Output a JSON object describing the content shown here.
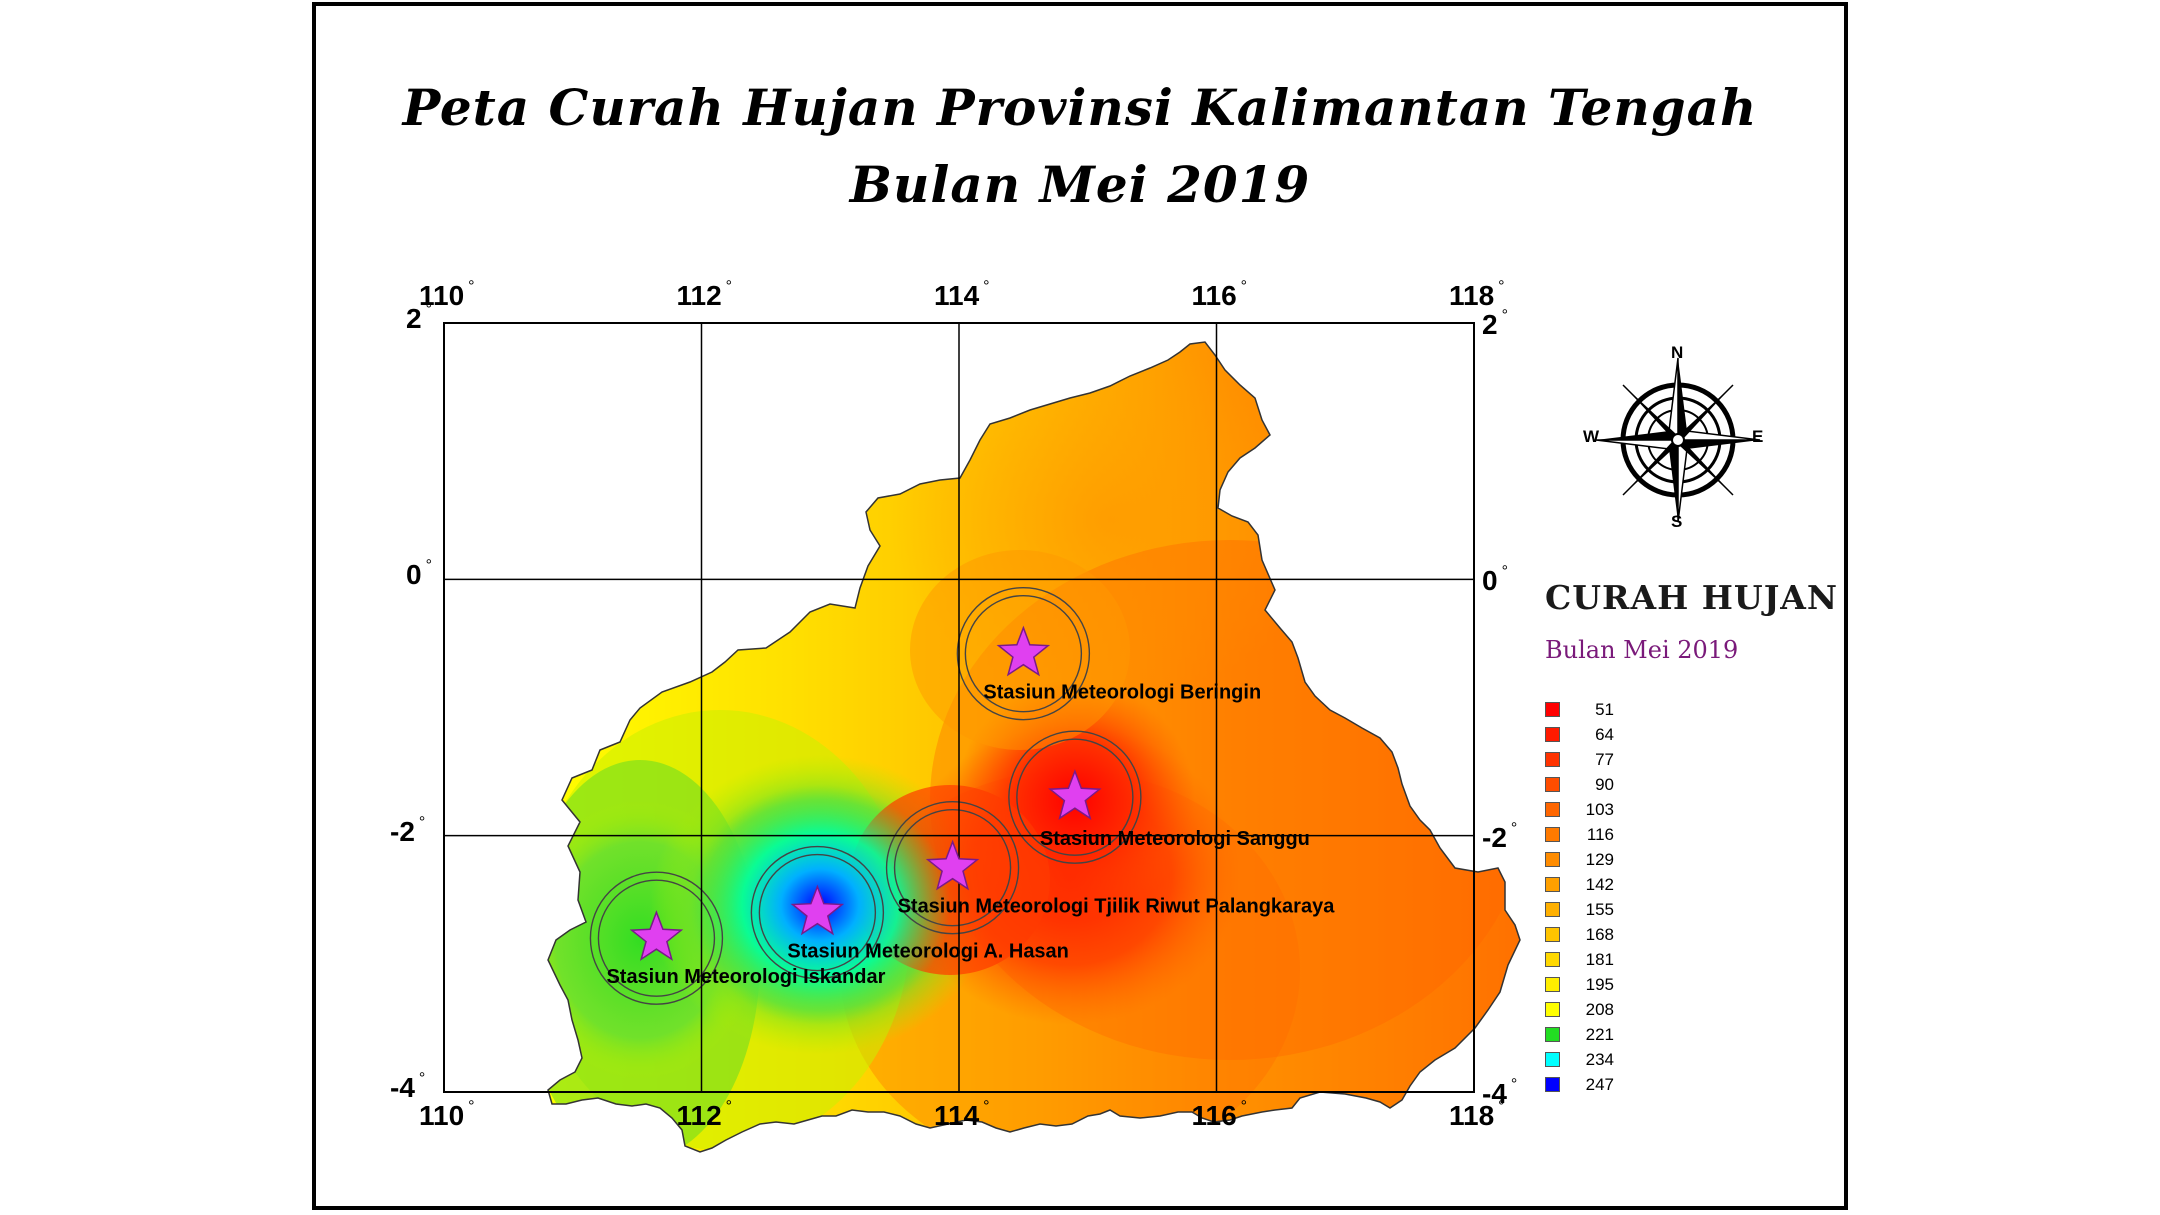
{
  "title": {
    "line1": "Peta Curah Hujan Provinsi Kalimantan Tengah",
    "line2": "Bulan Mei 2019"
  },
  "axes": {
    "lon_labels": [
      "110",
      "112",
      "114",
      "116",
      "118"
    ],
    "lat_labels": [
      "2",
      "0",
      "-2",
      "-4"
    ],
    "lon_range": [
      110,
      118
    ],
    "lat_range": [
      -4,
      2
    ],
    "grid": true
  },
  "compass": {
    "north": "N",
    "south": "S",
    "east": "E",
    "west": "W",
    "icon": "compass-rose-icon"
  },
  "stations": [
    {
      "name": "Stasiun Meteorologi Beringin",
      "lon": 114.5,
      "lat": -0.58
    },
    {
      "name": "Stasiun Meteorologi Sanggu",
      "lon": 114.9,
      "lat": -1.7
    },
    {
      "name": "Stasiun Meteorologi  Tjilik Riwut Palangkaraya",
      "lon": 113.95,
      "lat": -2.25
    },
    {
      "name": "Stasiun Meteorologi A. Hasan",
      "lon": 112.9,
      "lat": -2.6
    },
    {
      "name": "Stasiun Meteorologi Iskandar",
      "lon": 111.65,
      "lat": -2.8
    }
  ],
  "legend": {
    "title": "CURAH HUJAN",
    "subtitle": "Bulan Mei 2019",
    "items": [
      {
        "value": "51",
        "color": "#ff0000"
      },
      {
        "value": "64",
        "color": "#ff1a00"
      },
      {
        "value": "77",
        "color": "#ff3300"
      },
      {
        "value": "90",
        "color": "#ff4d00"
      },
      {
        "value": "103",
        "color": "#ff6600"
      },
      {
        "value": "116",
        "color": "#ff7a00"
      },
      {
        "value": "129",
        "color": "#ff8c00"
      },
      {
        "value": "142",
        "color": "#ffa000"
      },
      {
        "value": "155",
        "color": "#ffb000"
      },
      {
        "value": "168",
        "color": "#ffc400"
      },
      {
        "value": "181",
        "color": "#ffd800"
      },
      {
        "value": "195",
        "color": "#ffee00"
      },
      {
        "value": "208",
        "color": "#ffff00"
      },
      {
        "value": "221",
        "color": "#22dd22"
      },
      {
        "value": "234",
        "color": "#00ffff"
      },
      {
        "value": "247",
        "color": "#0000ff"
      }
    ]
  },
  "colors": {
    "station_marker": "#e040f0",
    "grid": "#000000"
  }
}
